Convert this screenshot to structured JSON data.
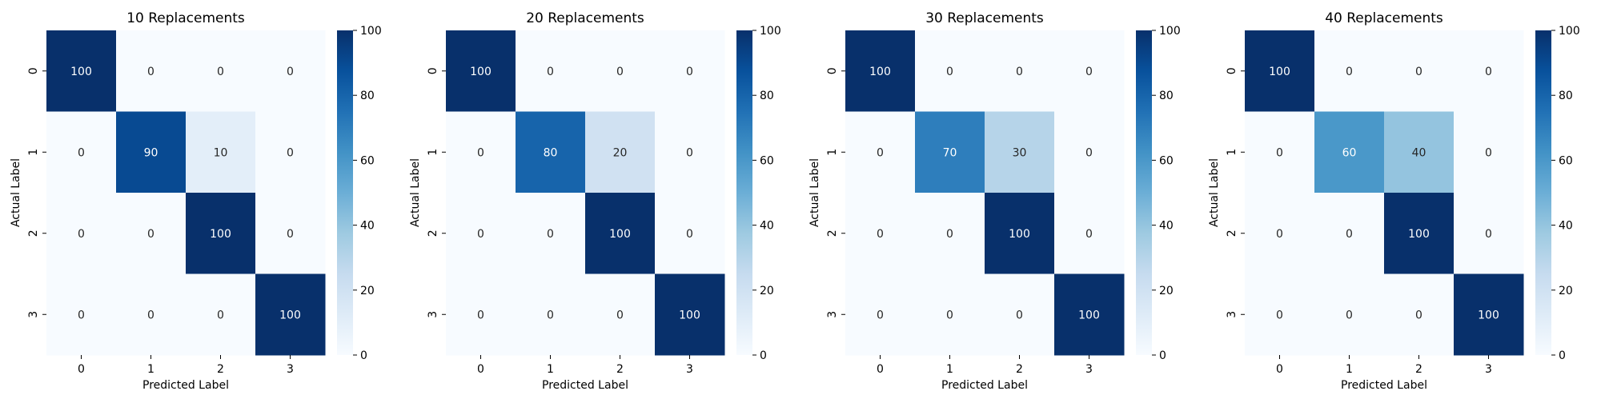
{
  "chart_data": [
    {
      "type": "heatmap",
      "title": "10 Replacements",
      "xlabel": "Predicted Label",
      "ylabel": "Actual Label",
      "x_categories": [
        "0",
        "1",
        "2",
        "3"
      ],
      "y_categories": [
        "0",
        "1",
        "2",
        "3"
      ],
      "values": [
        [
          100,
          0,
          0,
          0
        ],
        [
          0,
          90,
          10,
          0
        ],
        [
          0,
          0,
          100,
          0
        ],
        [
          0,
          0,
          0,
          100
        ]
      ],
      "colorbar": {
        "min": 0,
        "max": 100,
        "ticks": [
          0,
          20,
          40,
          60,
          80,
          100
        ],
        "colormap": "Blues"
      }
    },
    {
      "type": "heatmap",
      "title": "20 Replacements",
      "xlabel": "Predicted Label",
      "ylabel": "Actual Label",
      "x_categories": [
        "0",
        "1",
        "2",
        "3"
      ],
      "y_categories": [
        "0",
        "1",
        "2",
        "3"
      ],
      "values": [
        [
          100,
          0,
          0,
          0
        ],
        [
          0,
          80,
          20,
          0
        ],
        [
          0,
          0,
          100,
          0
        ],
        [
          0,
          0,
          0,
          100
        ]
      ],
      "colorbar": {
        "min": 0,
        "max": 100,
        "ticks": [
          0,
          20,
          40,
          60,
          80,
          100
        ],
        "colormap": "Blues"
      }
    },
    {
      "type": "heatmap",
      "title": "30 Replacements",
      "xlabel": "Predicted Label",
      "ylabel": "Actual Label",
      "x_categories": [
        "0",
        "1",
        "2",
        "3"
      ],
      "y_categories": [
        "0",
        "1",
        "2",
        "3"
      ],
      "values": [
        [
          100,
          0,
          0,
          0
        ],
        [
          0,
          70,
          30,
          0
        ],
        [
          0,
          0,
          100,
          0
        ],
        [
          0,
          0,
          0,
          100
        ]
      ],
      "colorbar": {
        "min": 0,
        "max": 100,
        "ticks": [
          0,
          20,
          40,
          60,
          80,
          100
        ],
        "colormap": "Blues"
      }
    },
    {
      "type": "heatmap",
      "title": "40 Replacements",
      "xlabel": "Predicted Label",
      "ylabel": "Actual Label",
      "x_categories": [
        "0",
        "1",
        "2",
        "3"
      ],
      "y_categories": [
        "0",
        "1",
        "2",
        "3"
      ],
      "values": [
        [
          100,
          0,
          0,
          0
        ],
        [
          0,
          60,
          40,
          0
        ],
        [
          0,
          0,
          100,
          0
        ],
        [
          0,
          0,
          0,
          100
        ]
      ],
      "colorbar": {
        "min": 0,
        "max": 100,
        "ticks": [
          0,
          20,
          40,
          60,
          80,
          100
        ],
        "colormap": "Blues"
      }
    }
  ]
}
